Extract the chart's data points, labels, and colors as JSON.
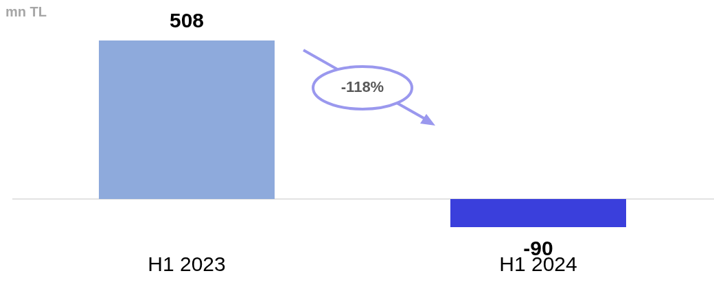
{
  "chart_data": {
    "type": "bar",
    "ylabel": "mn TL",
    "categories": [
      "H1 2023",
      "H1 2024"
    ],
    "values": [
      508,
      -90
    ],
    "colors": [
      "#8eaadc",
      "#3a3fdc"
    ],
    "data_labels": true,
    "annotations": [
      "-118%"
    ],
    "legend": false
  }
}
